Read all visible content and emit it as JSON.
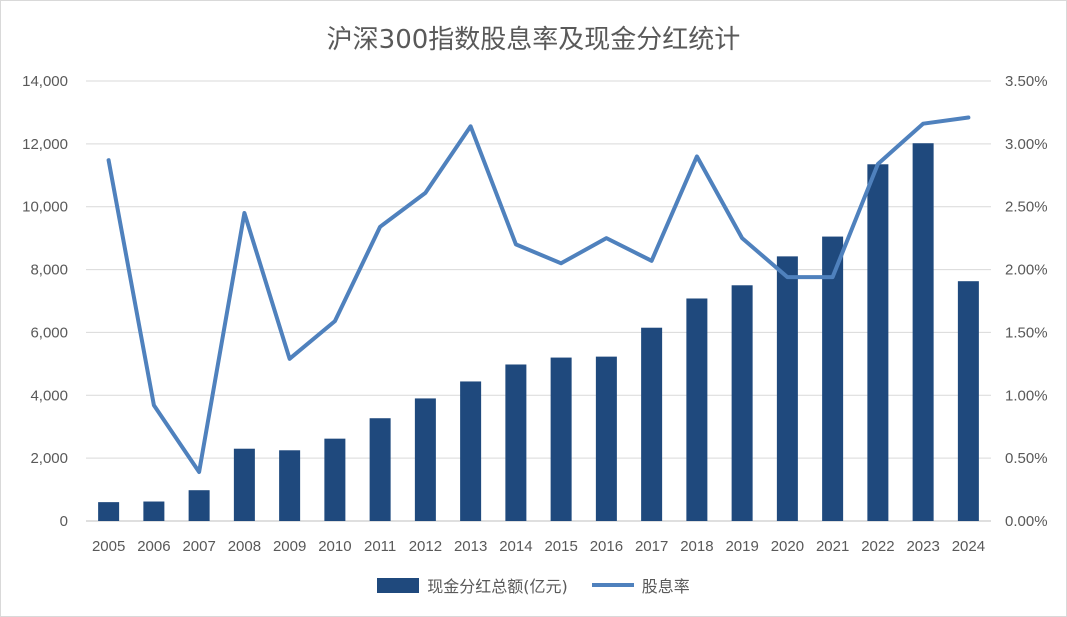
{
  "chart_data": {
    "type": "bar+line",
    "title": "沪深300指数股息率及现金分红统计",
    "categories": [
      "2005",
      "2006",
      "2007",
      "2008",
      "2009",
      "2010",
      "2011",
      "2012",
      "2013",
      "2014",
      "2015",
      "2016",
      "2017",
      "2018",
      "2019",
      "2020",
      "2021",
      "2022",
      "2023",
      "2024"
    ],
    "series": [
      {
        "name": "现金分红总额(亿元)",
        "type": "bar",
        "axis": "left",
        "color": "#1f497d",
        "values": [
          600,
          620,
          980,
          2300,
          2250,
          2620,
          3270,
          3900,
          4440,
          4980,
          5200,
          5230,
          6150,
          7080,
          7500,
          8420,
          9050,
          11350,
          12020,
          7630
        ]
      },
      {
        "name": "股息率",
        "type": "line",
        "axis": "right",
        "color": "#4f81bd",
        "values": [
          2.87,
          0.92,
          0.39,
          2.45,
          1.29,
          1.59,
          2.34,
          2.61,
          3.14,
          2.2,
          2.05,
          2.25,
          2.07,
          2.9,
          2.25,
          1.94,
          1.94,
          2.84,
          3.16,
          3.21
        ]
      }
    ],
    "y_left": {
      "min": 0,
      "max": 14000,
      "ticks": [
        "0",
        "2,000",
        "4,000",
        "6,000",
        "8,000",
        "10,000",
        "12,000",
        "14,000"
      ]
    },
    "y_right": {
      "min": 0,
      "max": 3.5,
      "ticks": [
        "0.00%",
        "0.50%",
        "1.00%",
        "1.50%",
        "2.00%",
        "2.50%",
        "3.00%",
        "3.50%"
      ]
    },
    "grid": true,
    "legend_position": "bottom"
  }
}
